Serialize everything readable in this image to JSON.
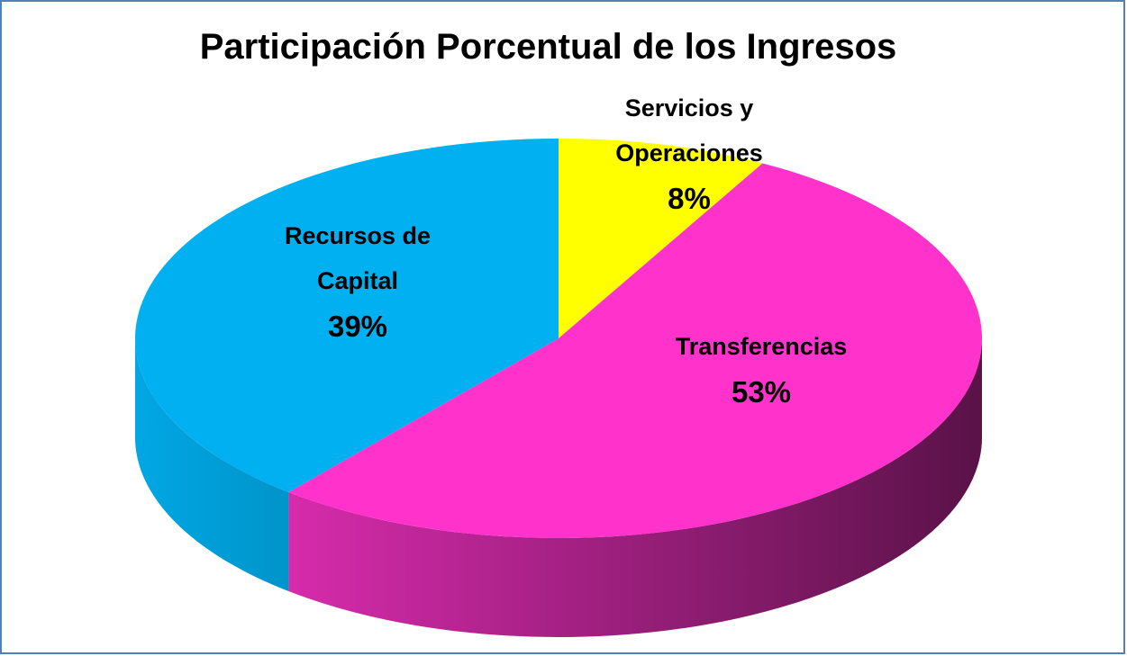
{
  "chart_data": {
    "type": "pie",
    "title": "Participación Porcentual de los Ingresos",
    "categories": [
      "Servicios y Operaciones",
      "Transferencias",
      "Recursos de Capital"
    ],
    "values": [
      8,
      53,
      39
    ],
    "value_labels": [
      "8%",
      "53%",
      "39%"
    ],
    "colors": [
      "#ffff00",
      "#ff33cc",
      "#00b0f0"
    ]
  }
}
